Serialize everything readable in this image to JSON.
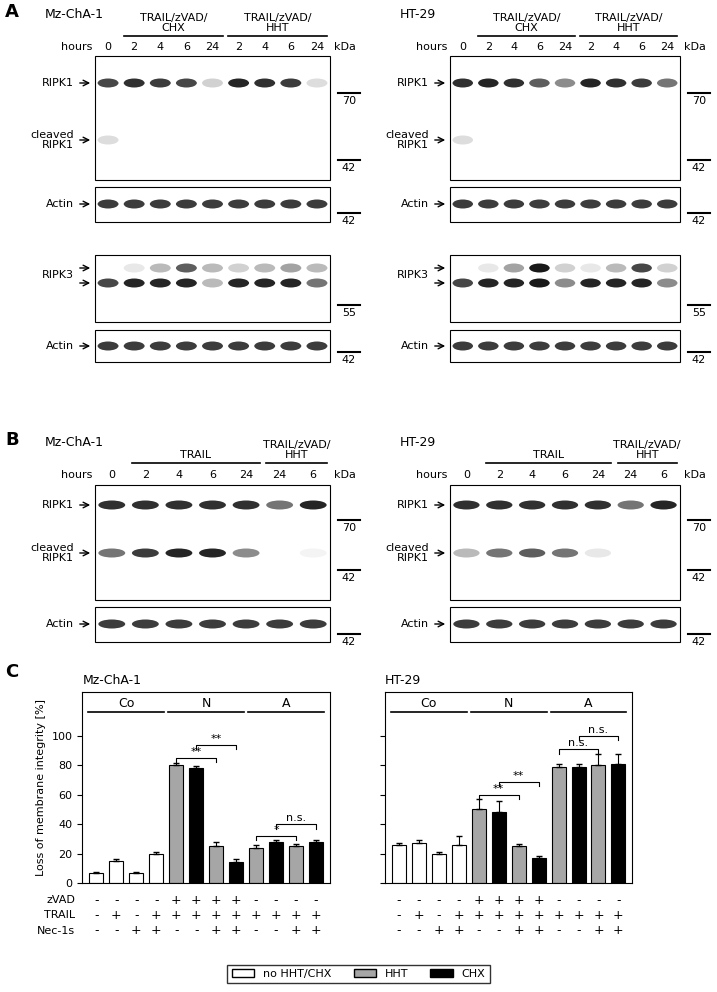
{
  "blot_panels": [
    {
      "label": "A",
      "sections": [
        {
          "cell_line": "Mz-ChA-1",
          "axis_label": "hours",
          "unit": "kDa",
          "lanes": [
            0,
            2,
            4,
            6,
            24,
            2,
            4,
            6,
            24
          ],
          "groups": [
            {
              "label": "TRAIL/zVAD/\nCHX",
              "first": 1,
              "last": 4
            },
            {
              "label": "TRAIL/zVAD/\nHHT",
              "first": 5,
              "last": 8
            }
          ],
          "blots": [
            {
              "markers": [
                70,
                42
              ],
              "rows": [
                {
                  "label": "RIPK1",
                  "intensity": [
                    0.8,
                    0.9,
                    0.85,
                    0.8,
                    0.2,
                    0.95,
                    0.9,
                    0.85,
                    0.15
                  ]
                },
                {
                  "label": "cleaved\nRIPK1",
                  "intensity": [
                    0.15,
                    0,
                    0,
                    0,
                    0,
                    0,
                    0,
                    0,
                    0
                  ]
                }
              ]
            },
            {
              "markers": [
                42
              ],
              "rows": [
                {
                  "label": "Actin",
                  "intensity": [
                    0.85,
                    0.85,
                    0.85,
                    0.85,
                    0.85,
                    0.85,
                    0.85,
                    0.85,
                    0.85
                  ]
                }
              ]
            },
            {
              "markers": [
                55
              ],
              "rows": [
                {
                  "label": null,
                  "intensity": [
                    0,
                    0.1,
                    0.3,
                    0.7,
                    0.3,
                    0.2,
                    0.3,
                    0.4,
                    0.3
                  ]
                },
                {
                  "label": "RIPK3",
                  "intensity": [
                    0.8,
                    0.95,
                    0.95,
                    0.95,
                    0.3,
                    0.95,
                    0.95,
                    0.95,
                    0.6
                  ]
                }
              ]
            },
            {
              "markers": [
                42
              ],
              "rows": [
                {
                  "label": "Actin",
                  "intensity": [
                    0.85,
                    0.85,
                    0.85,
                    0.85,
                    0.85,
                    0.85,
                    0.85,
                    0.85,
                    0.85
                  ]
                }
              ]
            }
          ]
        },
        {
          "cell_line": "HT-29",
          "axis_label": "hours",
          "unit": "kDa",
          "lanes": [
            0,
            2,
            4,
            6,
            24,
            2,
            4,
            6,
            24
          ],
          "groups": [
            {
              "label": "TRAIL/zVAD/\nCHX",
              "first": 1,
              "last": 4
            },
            {
              "label": "TRAIL/zVAD/\nHHT",
              "first": 5,
              "last": 8
            }
          ],
          "blots": [
            {
              "markers": [
                70,
                42
              ],
              "rows": [
                {
                  "label": "RIPK1",
                  "intensity": [
                    0.9,
                    0.95,
                    0.9,
                    0.7,
                    0.5,
                    0.95,
                    0.9,
                    0.85,
                    0.6
                  ]
                },
                {
                  "label": "cleaved\nRIPK1",
                  "intensity": [
                    0.15,
                    0,
                    0,
                    0,
                    0,
                    0,
                    0,
                    0,
                    0
                  ]
                }
              ]
            },
            {
              "markers": [
                42
              ],
              "rows": [
                {
                  "label": "Actin",
                  "intensity": [
                    0.85,
                    0.85,
                    0.85,
                    0.85,
                    0.85,
                    0.85,
                    0.85,
                    0.85,
                    0.85
                  ]
                }
              ]
            },
            {
              "markers": [
                55
              ],
              "rows": [
                {
                  "label": null,
                  "intensity": [
                    0,
                    0.1,
                    0.4,
                    1,
                    0.2,
                    0.1,
                    0.3,
                    0.8,
                    0.2
                  ]
                },
                {
                  "label": "RIPK3",
                  "intensity": [
                    0.8,
                    0.95,
                    0.95,
                    1,
                    0.5,
                    0.95,
                    0.95,
                    0.95,
                    0.5
                  ]
                }
              ]
            },
            {
              "markers": [
                42
              ],
              "rows": [
                {
                  "label": "Actin",
                  "intensity": [
                    0.85,
                    0.85,
                    0.85,
                    0.85,
                    0.85,
                    0.85,
                    0.85,
                    0.85,
                    0.85
                  ]
                }
              ]
            }
          ]
        }
      ]
    },
    {
      "label": "B",
      "sections": [
        {
          "cell_line": "Mz-ChA-1",
          "axis_label": "hours",
          "unit": "kDa",
          "lanes": [
            0,
            2,
            4,
            6,
            24,
            24,
            6
          ],
          "groups": [
            {
              "label": "TRAIL",
              "first": 1,
              "last": 4
            },
            {
              "label": "TRAIL/zVAD/\nHHT",
              "first": 5,
              "last": 6
            }
          ],
          "blots": [
            {
              "markers": [
                70,
                42
              ],
              "rows": [
                {
                  "label": "RIPK1",
                  "intensity": [
                    0.9,
                    0.9,
                    0.9,
                    0.9,
                    0.9,
                    0.6,
                    0.95
                  ]
                },
                {
                  "label": "cleaved\nRIPK1",
                  "intensity": [
                    0.6,
                    0.85,
                    0.95,
                    0.95,
                    0.5,
                    0,
                    0.05
                  ]
                }
              ]
            },
            {
              "markers": [
                42
              ],
              "rows": [
                {
                  "label": "Actin",
                  "intensity": [
                    0.85,
                    0.85,
                    0.85,
                    0.85,
                    0.85,
                    0.85,
                    0.85
                  ]
                }
              ]
            }
          ]
        },
        {
          "cell_line": "HT-29",
          "axis_label": "hours",
          "unit": "kDa",
          "lanes": [
            0,
            2,
            4,
            6,
            24,
            24,
            6
          ],
          "groups": [
            {
              "label": "TRAIL",
              "first": 1,
              "last": 4
            },
            {
              "label": "TRAIL/zVAD/\nHHT",
              "first": 5,
              "last": 6
            }
          ],
          "blots": [
            {
              "markers": [
                70,
                42
              ],
              "rows": [
                {
                  "label": "RIPK1",
                  "intensity": [
                    0.9,
                    0.9,
                    0.9,
                    0.9,
                    0.9,
                    0.6,
                    0.95
                  ]
                },
                {
                  "label": "cleaved\nRIPK1",
                  "intensity": [
                    0.3,
                    0.6,
                    0.7,
                    0.6,
                    0.1,
                    0,
                    0
                  ]
                }
              ]
            },
            {
              "markers": [
                42
              ],
              "rows": [
                {
                  "label": "Actin",
                  "intensity": [
                    0.85,
                    0.85,
                    0.85,
                    0.85,
                    0.85,
                    0.85,
                    0.85
                  ]
                }
              ]
            }
          ]
        }
      ]
    }
  ],
  "bar_panel": {
    "label": "C",
    "condition_rows": [
      "zVAD",
      "TRAIL",
      "Nec-1s"
    ]
  },
  "chart_data": [
    {
      "type": "bar",
      "title": "Mz-ChA-1",
      "y_label": "Loss of membrane integrity [%]",
      "categories": [
        null,
        null,
        null,
        null,
        null,
        null,
        null,
        null,
        null,
        null,
        null,
        null
      ],
      "ylim": [
        0,
        130
      ],
      "yticks": [
        0,
        20,
        40,
        60,
        80,
        100
      ],
      "grid": false,
      "tick_labels": "y",
      "legend": "lower center",
      "series": [
        {
          "name": "no HHT/CHX",
          "color": "#ffffff",
          "values": [
            7,
            15,
            7,
            20,
            null,
            null,
            null,
            null,
            null,
            null,
            null,
            null
          ],
          "errors": [
            0.5,
            1,
            0.5,
            1,
            null,
            null,
            null,
            null,
            null,
            null,
            null,
            null
          ]
        },
        {
          "name": "HHT",
          "color": "#a6a6a6",
          "values": [
            null,
            null,
            null,
            null,
            80,
            null,
            25,
            null,
            24,
            null,
            25,
            null
          ],
          "errors": [
            null,
            null,
            null,
            null,
            1.5,
            null,
            2.5,
            null,
            1.5,
            null,
            1.5,
            null
          ]
        },
        {
          "name": "CHX",
          "color": "#000000",
          "values": [
            null,
            null,
            null,
            null,
            null,
            78,
            null,
            14,
            null,
            28,
            null,
            28
          ],
          "errors": [
            null,
            null,
            null,
            null,
            null,
            1.5,
            null,
            2,
            null,
            1.5,
            null,
            1.5
          ]
        }
      ],
      "groups": [
        {
          "label": "Co",
          "first": 0,
          "last": 3
        },
        {
          "label": "N",
          "first": 4,
          "last": 7
        },
        {
          "label": "A",
          "first": 8,
          "last": 11
        }
      ],
      "annotations": [
        {
          "from": 4,
          "to": 6,
          "y": 85,
          "text": "**"
        },
        {
          "from": 5,
          "to": 7,
          "y": 94,
          "text": "**"
        },
        {
          "from": 8,
          "to": 10,
          "y": 32,
          "text": "*"
        },
        {
          "from": 9,
          "to": 11,
          "y": 40,
          "text": "n.s."
        }
      ],
      "conditions": [
        [
          "-",
          "-",
          "-",
          "-",
          "+",
          "+",
          "+",
          "+",
          "-",
          "-",
          "-",
          "-"
        ],
        [
          "-",
          "+",
          "-",
          "+",
          "+",
          "+",
          "+",
          "+",
          "+",
          "+",
          "+",
          "+"
        ],
        [
          "-",
          "-",
          "+",
          "+",
          "-",
          "-",
          "+",
          "+",
          "-",
          "-",
          "+",
          "+"
        ]
      ]
    },
    {
      "type": "bar",
      "title": "HT-29",
      "categories": [
        null,
        null,
        null,
        null,
        null,
        null,
        null,
        null,
        null,
        null,
        null,
        null
      ],
      "ylim": [
        0,
        130
      ],
      "yticks": [
        0,
        20,
        40,
        60,
        80,
        100
      ],
      "grid": false,
      "tick_labels": false,
      "series": [
        {
          "name": "no HHT/CHX",
          "color": "#ffffff",
          "values": [
            26,
            27,
            20,
            26,
            null,
            null,
            null,
            null,
            null,
            null,
            null,
            null
          ],
          "errors": [
            1,
            2.5,
            1,
            6,
            null,
            null,
            null,
            null,
            null,
            null,
            null,
            null
          ]
        },
        {
          "name": "HHT",
          "color": "#a6a6a6",
          "values": [
            null,
            null,
            null,
            null,
            50,
            null,
            25,
            null,
            79,
            null,
            80,
            null
          ],
          "errors": [
            null,
            null,
            null,
            null,
            7,
            null,
            1.5,
            null,
            2,
            null,
            8,
            null
          ]
        },
        {
          "name": "CHX",
          "color": "#000000",
          "values": [
            null,
            null,
            null,
            null,
            null,
            48,
            null,
            17,
            null,
            79,
            null,
            81
          ],
          "errors": [
            null,
            null,
            null,
            null,
            null,
            8,
            null,
            1,
            null,
            2,
            null,
            7
          ]
        }
      ],
      "groups": [
        {
          "label": "Co",
          "first": 0,
          "last": 3
        },
        {
          "label": "N",
          "first": 4,
          "last": 7
        },
        {
          "label": "A",
          "first": 8,
          "last": 11
        }
      ],
      "annotations": [
        {
          "from": 4,
          "to": 6,
          "y": 60,
          "text": "**"
        },
        {
          "from": 5,
          "to": 7,
          "y": 69,
          "text": "**"
        },
        {
          "from": 8,
          "to": 10,
          "y": 91,
          "text": "n.s."
        },
        {
          "from": 9,
          "to": 11,
          "y": 100,
          "text": "n.s."
        }
      ],
      "conditions": [
        [
          "-",
          "-",
          "-",
          "-",
          "+",
          "+",
          "+",
          "+",
          "-",
          "-",
          "-",
          "-"
        ],
        [
          "-",
          "+",
          "-",
          "+",
          "+",
          "+",
          "+",
          "+",
          "+",
          "+",
          "+",
          "+"
        ],
        [
          "-",
          "-",
          "+",
          "+",
          "-",
          "-",
          "+",
          "+",
          "-",
          "-",
          "+",
          "+"
        ]
      ]
    }
  ]
}
